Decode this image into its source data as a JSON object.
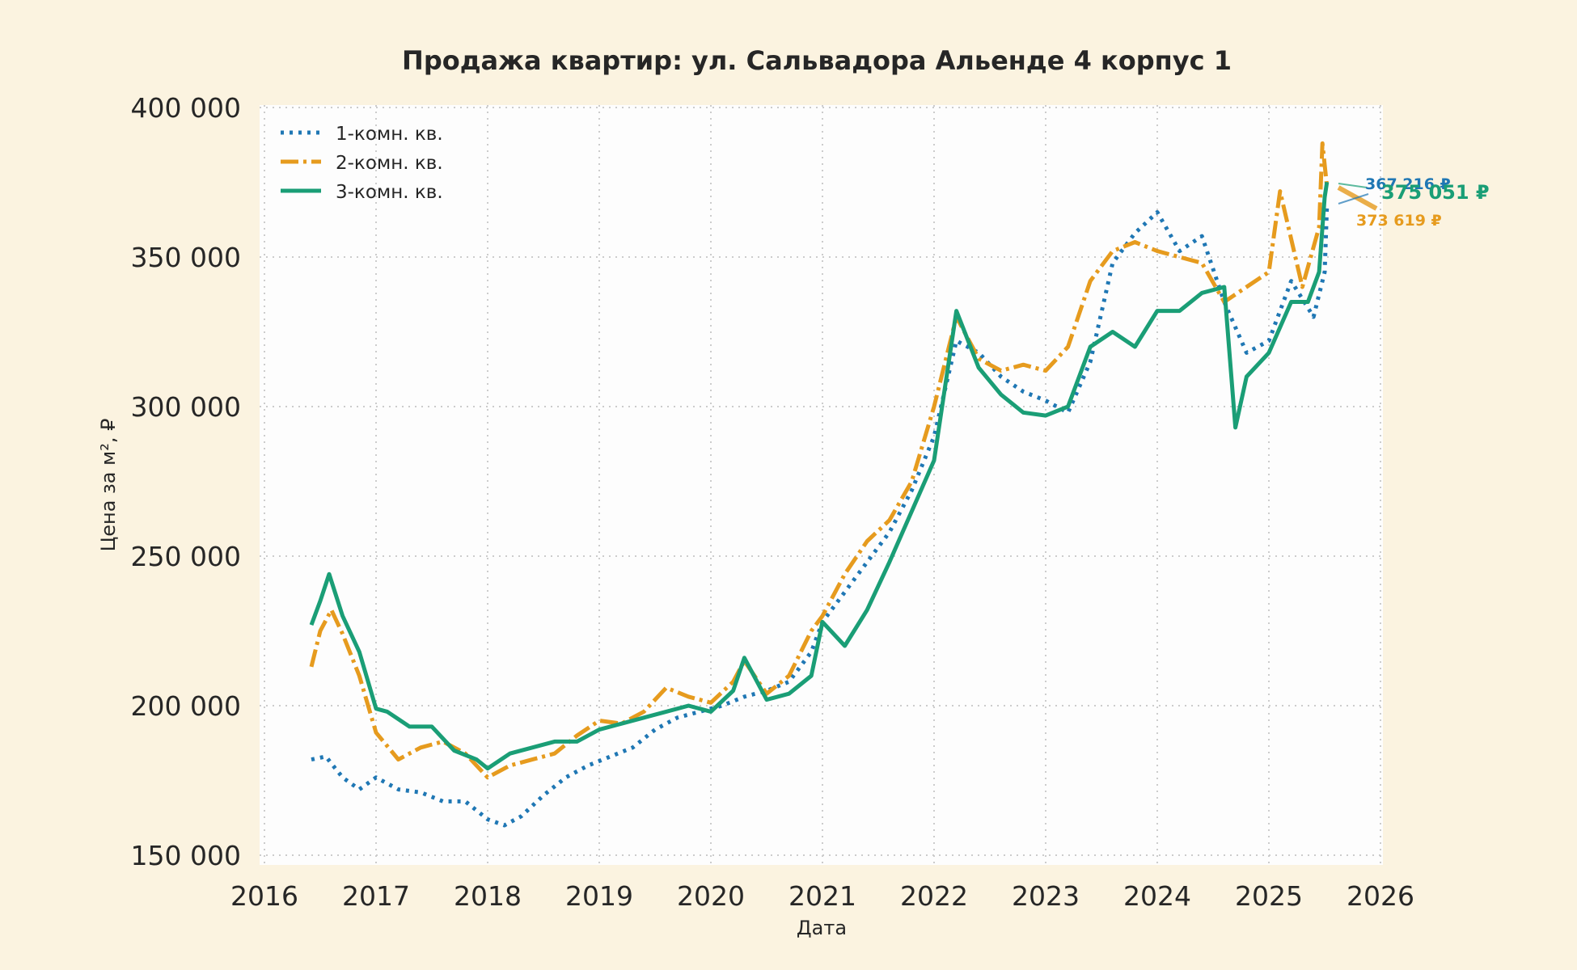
{
  "title": "Продажа квартир: ул. Сальвадора Альенде 4 корпус 1",
  "xlabel": "Дата",
  "ylabel": "Цена за м², ₽",
  "colors": {
    "background": "#fbf3e0",
    "plot_bg": "#fdfdfd",
    "s1": "#1f77b4",
    "s2": "#e69b1e",
    "s3": "#1a9e76",
    "grid": "#cccccc"
  },
  "chart_data": {
    "type": "line",
    "title": "Продажа квартир: ул. Сальвадора Альенде 4 корпус 1",
    "xlabel": "Дата",
    "ylabel": "Цена за м², ₽",
    "xlim": [
      2016,
      2026
    ],
    "ylim": [
      150000,
      400000
    ],
    "x_ticks": [
      "2016",
      "2017",
      "2018",
      "2019",
      "2020",
      "2021",
      "2022",
      "2023",
      "2024",
      "2025",
      "2026"
    ],
    "y_ticks": [
      "150 000",
      "200 000",
      "250 000",
      "300 000",
      "350 000",
      "400 000"
    ],
    "grid": true,
    "legend_position": "upper left",
    "series": [
      {
        "name": "1-комн. кв.",
        "style": "dotted",
        "color": "#1f77b4",
        "x": [
          2016.42,
          2016.55,
          2016.7,
          2016.85,
          2017.0,
          2017.2,
          2017.4,
          2017.6,
          2017.8,
          2018.0,
          2018.15,
          2018.3,
          2018.5,
          2018.7,
          2018.9,
          2019.1,
          2019.3,
          2019.5,
          2019.7,
          2019.9,
          2020.1,
          2020.3,
          2020.5,
          2020.7,
          2020.9,
          2021.0,
          2021.2,
          2021.4,
          2021.6,
          2021.8,
          2022.0,
          2022.2,
          2022.4,
          2022.6,
          2022.8,
          2023.0,
          2023.2,
          2023.4,
          2023.6,
          2023.8,
          2024.0,
          2024.2,
          2024.4,
          2024.6,
          2024.8,
          2025.0,
          2025.2,
          2025.4,
          2025.5,
          2025.52
        ],
        "values": [
          182000,
          183000,
          176000,
          172000,
          176000,
          172000,
          171000,
          168000,
          168000,
          162000,
          160000,
          163000,
          170000,
          176000,
          180000,
          183000,
          186000,
          192000,
          196000,
          198000,
          200000,
          203000,
          205000,
          208000,
          218000,
          228000,
          238000,
          248000,
          258000,
          272000,
          290000,
          322000,
          318000,
          310000,
          305000,
          302000,
          298000,
          315000,
          348000,
          358000,
          365000,
          352000,
          357000,
          335000,
          318000,
          322000,
          342000,
          330000,
          345000,
          367216
        ]
      },
      {
        "name": "2-комн. кв.",
        "style": "dashdot",
        "color": "#e69b1e",
        "x": [
          2016.42,
          2016.5,
          2016.6,
          2016.7,
          2016.85,
          2017.0,
          2017.2,
          2017.4,
          2017.6,
          2017.8,
          2018.0,
          2018.2,
          2018.4,
          2018.6,
          2018.8,
          2019.0,
          2019.2,
          2019.4,
          2019.6,
          2019.8,
          2020.0,
          2020.2,
          2020.3,
          2020.5,
          2020.7,
          2020.9,
          2021.0,
          2021.2,
          2021.4,
          2021.6,
          2021.8,
          2022.0,
          2022.2,
          2022.4,
          2022.6,
          2022.8,
          2023.0,
          2023.2,
          2023.4,
          2023.6,
          2023.8,
          2024.0,
          2024.2,
          2024.4,
          2024.6,
          2024.8,
          2025.0,
          2025.1,
          2025.3,
          2025.45,
          2025.48,
          2025.52
        ],
        "values": [
          213000,
          225000,
          232000,
          224000,
          210000,
          191000,
          182000,
          186000,
          188000,
          184000,
          176000,
          180000,
          182000,
          184000,
          190000,
          195000,
          194000,
          198000,
          206000,
          203000,
          201000,
          208000,
          215000,
          204000,
          210000,
          225000,
          230000,
          244000,
          255000,
          262000,
          275000,
          300000,
          330000,
          316000,
          312000,
          314000,
          312000,
          320000,
          342000,
          352000,
          355000,
          352000,
          350000,
          348000,
          335000,
          340000,
          345000,
          372000,
          340000,
          360000,
          388000,
          373619
        ]
      },
      {
        "name": "3-комн. кв.",
        "style": "solid",
        "color": "#1a9e76",
        "x": [
          2016.42,
          2016.5,
          2016.58,
          2016.7,
          2016.85,
          2017.0,
          2017.1,
          2017.3,
          2017.5,
          2017.7,
          2017.9,
          2018.0,
          2018.2,
          2018.4,
          2018.6,
          2018.8,
          2019.0,
          2019.2,
          2019.4,
          2019.6,
          2019.8,
          2020.0,
          2020.2,
          2020.3,
          2020.5,
          2020.7,
          2020.9,
          2021.0,
          2021.2,
          2021.4,
          2021.6,
          2021.8,
          2022.0,
          2022.2,
          2022.4,
          2022.6,
          2022.8,
          2023.0,
          2023.2,
          2023.4,
          2023.6,
          2023.8,
          2024.0,
          2024.2,
          2024.4,
          2024.6,
          2024.7,
          2024.8,
          2025.0,
          2025.2,
          2025.35,
          2025.45,
          2025.5,
          2025.52
        ],
        "values": [
          227000,
          235000,
          244000,
          230000,
          218000,
          199000,
          198000,
          193000,
          193000,
          185000,
          182000,
          179000,
          184000,
          186000,
          188000,
          188000,
          192000,
          194000,
          196000,
          198000,
          200000,
          198000,
          205000,
          216000,
          202000,
          204000,
          210000,
          228000,
          220000,
          232000,
          248000,
          265000,
          282000,
          332000,
          313000,
          304000,
          298000,
          297000,
          300000,
          320000,
          325000,
          320000,
          332000,
          332000,
          338000,
          340000,
          293000,
          310000,
          318000,
          335000,
          335000,
          345000,
          370000,
          375051
        ]
      }
    ],
    "annotations": [
      {
        "text": "367 216 ₽",
        "series": "1-комн. кв.",
        "color": "#1f77b4"
      },
      {
        "text": "373 619 ₽",
        "series": "2-комн. кв.",
        "color": "#e69b1e"
      },
      {
        "text": "375 051 ₽",
        "series": "3-комн. кв.",
        "color": "#1a9e76"
      }
    ]
  }
}
